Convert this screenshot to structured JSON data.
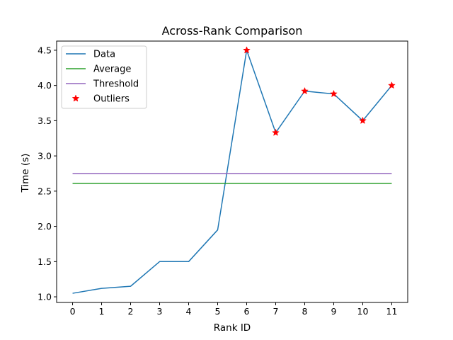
{
  "chart_data": {
    "type": "line",
    "title": "Across-Rank Comparison",
    "xlabel": "Rank ID",
    "ylabel": "Time (s)",
    "x": [
      0,
      1,
      2,
      3,
      4,
      5,
      6,
      7,
      8,
      9,
      10,
      11
    ],
    "xticks": [
      "0",
      "1",
      "2",
      "3",
      "4",
      "5",
      "6",
      "7",
      "8",
      "9",
      "10",
      "11"
    ],
    "yticks": [
      "1.0",
      "1.5",
      "2.0",
      "2.5",
      "3.0",
      "3.5",
      "4.0",
      "4.5"
    ],
    "xlim": [
      -0.55,
      11.55
    ],
    "ylim": [
      0.92,
      4.63
    ],
    "grid": false,
    "legend_position": "upper left",
    "series": [
      {
        "name": "Data",
        "kind": "line",
        "color": "#1f77b4",
        "values": [
          1.05,
          1.12,
          1.15,
          1.5,
          1.5,
          1.95,
          4.5,
          3.33,
          3.92,
          3.88,
          3.5,
          4.0
        ]
      },
      {
        "name": "Average",
        "kind": "hline",
        "color": "#2ca02c",
        "y": 2.61
      },
      {
        "name": "Threshold",
        "kind": "hline",
        "color": "#9467bd",
        "y": 2.75
      },
      {
        "name": "Outliers",
        "kind": "scatter",
        "color": "#ff0000",
        "marker": "star",
        "points": [
          [
            6,
            4.5
          ],
          [
            7,
            3.33
          ],
          [
            8,
            3.92
          ],
          [
            9,
            3.88
          ],
          [
            10,
            3.5
          ],
          [
            11,
            4.0
          ]
        ]
      }
    ]
  }
}
